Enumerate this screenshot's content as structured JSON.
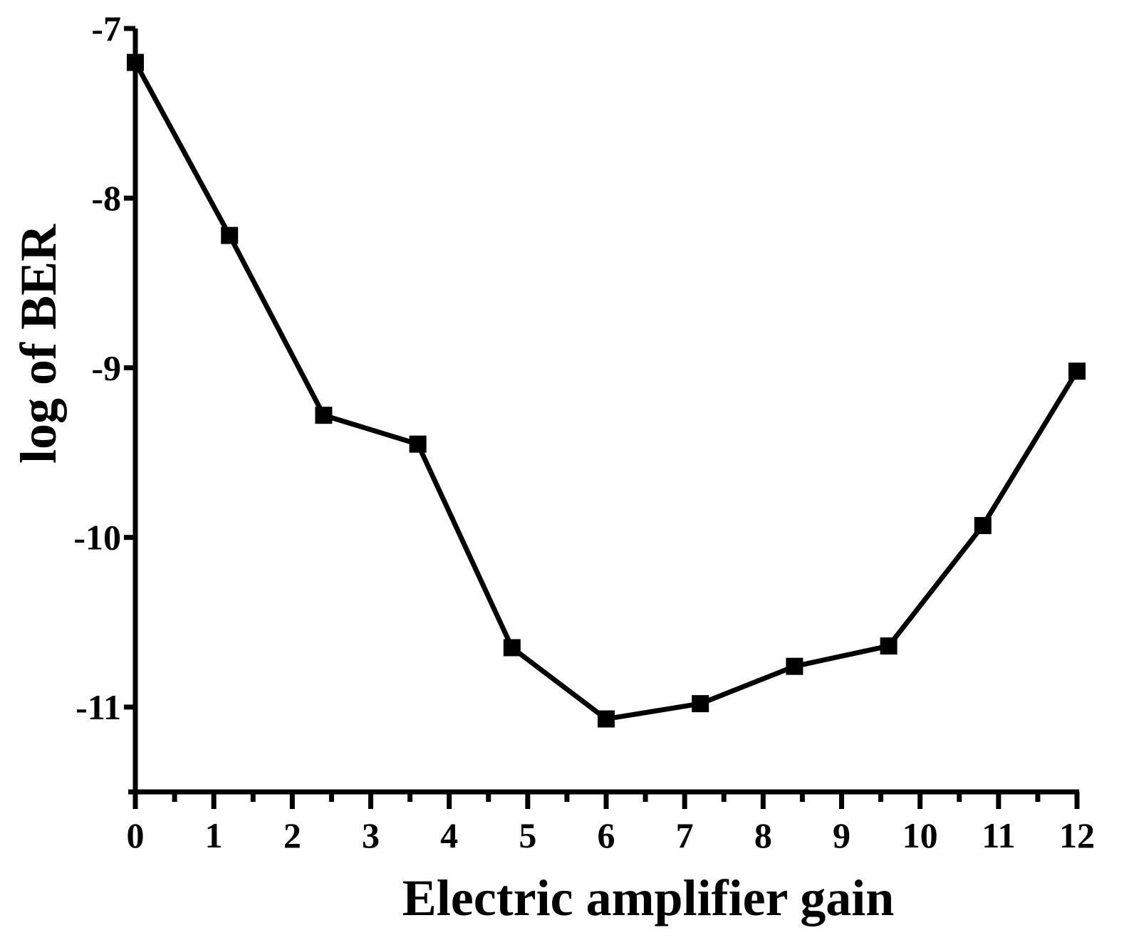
{
  "chart_data": {
    "type": "line",
    "title": "",
    "xlabel": "Electric amplifier gain",
    "ylabel": "log of BER",
    "xlim": [
      0,
      12
    ],
    "ylim": [
      -11.5,
      -7
    ],
    "xticks": [
      0,
      1,
      2,
      3,
      4,
      5,
      6,
      7,
      8,
      9,
      10,
      11,
      12
    ],
    "yticks": [
      -7,
      -8,
      -9,
      -10,
      -11
    ],
    "grid": false,
    "legend": "none",
    "line_color": "#000000",
    "marker": "square",
    "series": [
      {
        "x": [
          0,
          1.2,
          2.4,
          3.6,
          4.8,
          6.0,
          7.2,
          8.4,
          9.6,
          10.8,
          12.0
        ],
        "y": [
          -7.2,
          -8.22,
          -9.28,
          -9.45,
          -10.65,
          -11.07,
          -10.98,
          -10.76,
          -10.64,
          -9.93,
          -9.02
        ]
      }
    ]
  }
}
